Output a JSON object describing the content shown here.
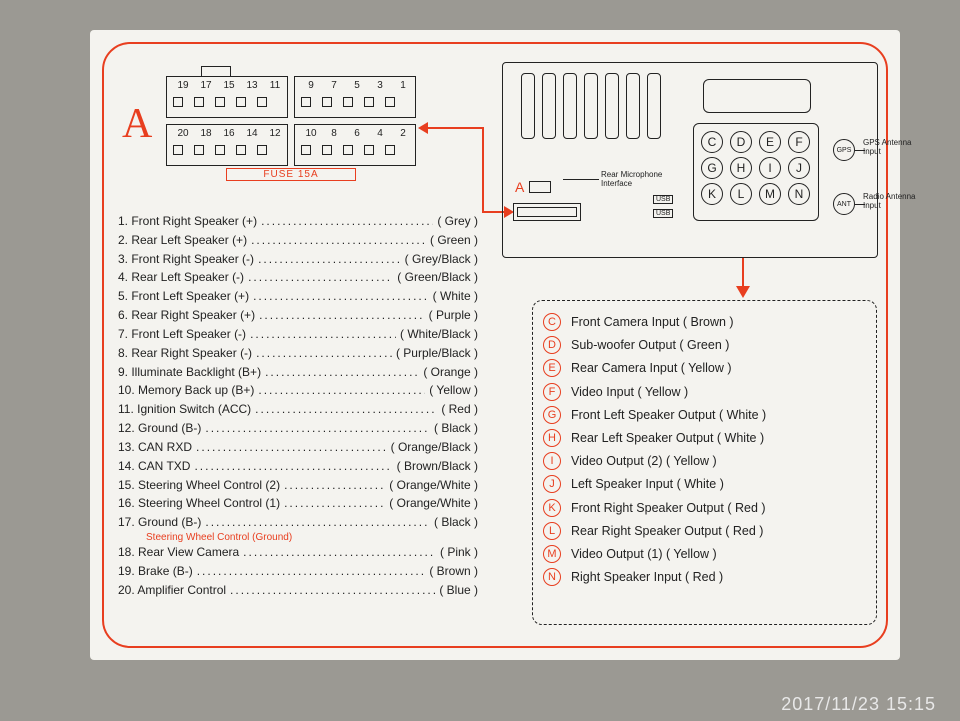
{
  "accent_color": "#e83e1f",
  "letter_A": "A",
  "connectorA": {
    "top_pins": [
      "19",
      "17",
      "15",
      "13",
      "11",
      "9",
      "7",
      "5",
      "3",
      "1"
    ],
    "bottom_pins": [
      "20",
      "18",
      "16",
      "14",
      "12",
      "10",
      "8",
      "6",
      "4",
      "2"
    ],
    "fuse": "FUSE 15A"
  },
  "head_unit": {
    "rear_mic": "Rear Microphone Interface",
    "small_A": "A",
    "usb": "USB",
    "letters": [
      "C",
      "D",
      "E",
      "F",
      "G",
      "H",
      "I",
      "J",
      "K",
      "L",
      "M",
      "N"
    ],
    "gps_circle": "GPS",
    "gps_label": "GPS Antenna Input",
    "ant_circle": "ANT",
    "ant_label": "Radio Antenna Input"
  },
  "pins": [
    {
      "n": "1",
      "name": "Front Right Speaker (+)",
      "color": "Grey"
    },
    {
      "n": "2",
      "name": "Rear Left Speaker (+)",
      "color": "Green"
    },
    {
      "n": "3",
      "name": "Front Right Speaker (-)",
      "color": "Grey/Black"
    },
    {
      "n": "4",
      "name": "Rear Left Speaker (-)",
      "color": "Green/Black"
    },
    {
      "n": "5",
      "name": "Front Left Speaker (+)",
      "color": "White"
    },
    {
      "n": "6",
      "name": "Rear Right Speaker (+)",
      "color": "Purple"
    },
    {
      "n": "7",
      "name": "Front Left Speaker (-)",
      "color": "White/Black"
    },
    {
      "n": "8",
      "name": "Rear Right Speaker (-)",
      "color": "Purple/Black"
    },
    {
      "n": "9",
      "name": "Illuminate Backlight (B+)",
      "color": "Orange"
    },
    {
      "n": "10",
      "name": "Memory Back up (B+)",
      "color": "Yellow"
    },
    {
      "n": "11",
      "name": "Ignition Switch (ACC)",
      "color": "Red"
    },
    {
      "n": "12",
      "name": "Ground (B-)",
      "color": "Black"
    },
    {
      "n": "13",
      "name": "CAN RXD",
      "color": "Orange/Black"
    },
    {
      "n": "14",
      "name": "CAN TXD",
      "color": "Brown/Black"
    },
    {
      "n": "15",
      "name": "Steering Wheel Control (2)",
      "color": "Orange/White"
    },
    {
      "n": "16",
      "name": "Steering Wheel Control (1)",
      "color": "Orange/White"
    },
    {
      "n": "17",
      "name": "Ground (B-)",
      "color": "Black"
    },
    {
      "n": "18",
      "name": "Rear View Camera",
      "color": "Pink"
    },
    {
      "n": "19",
      "name": "Brake (B-)",
      "color": "Brown"
    },
    {
      "n": "20",
      "name": "Amplifier Control",
      "color": "Blue"
    }
  ],
  "swc_note": "Steering Wheel Control (Ground)",
  "letter_legend": [
    {
      "l": "C",
      "t": "Front Camera Input ( Brown )"
    },
    {
      "l": "D",
      "t": "Sub-woofer Output ( Green )"
    },
    {
      "l": "E",
      "t": "Rear Camera Input ( Yellow )"
    },
    {
      "l": "F",
      "t": "Video Input ( Yellow )"
    },
    {
      "l": "G",
      "t": "Front Left Speaker Output ( White )"
    },
    {
      "l": "H",
      "t": "Rear Left Speaker Output ( White )"
    },
    {
      "l": "I",
      "t": "Video Output (2) ( Yellow )"
    },
    {
      "l": "J",
      "t": "Left Speaker Input ( White )"
    },
    {
      "l": "K",
      "t": "Front Right Speaker Output ( Red )"
    },
    {
      "l": "L",
      "t": "Rear Right Speaker Output ( Red )"
    },
    {
      "l": "M",
      "t": "Video Output (1) ( Yellow )"
    },
    {
      "l": "N",
      "t": "Right Speaker Input ( Red )"
    }
  ],
  "timestamp": "2017/11/23  15:15"
}
